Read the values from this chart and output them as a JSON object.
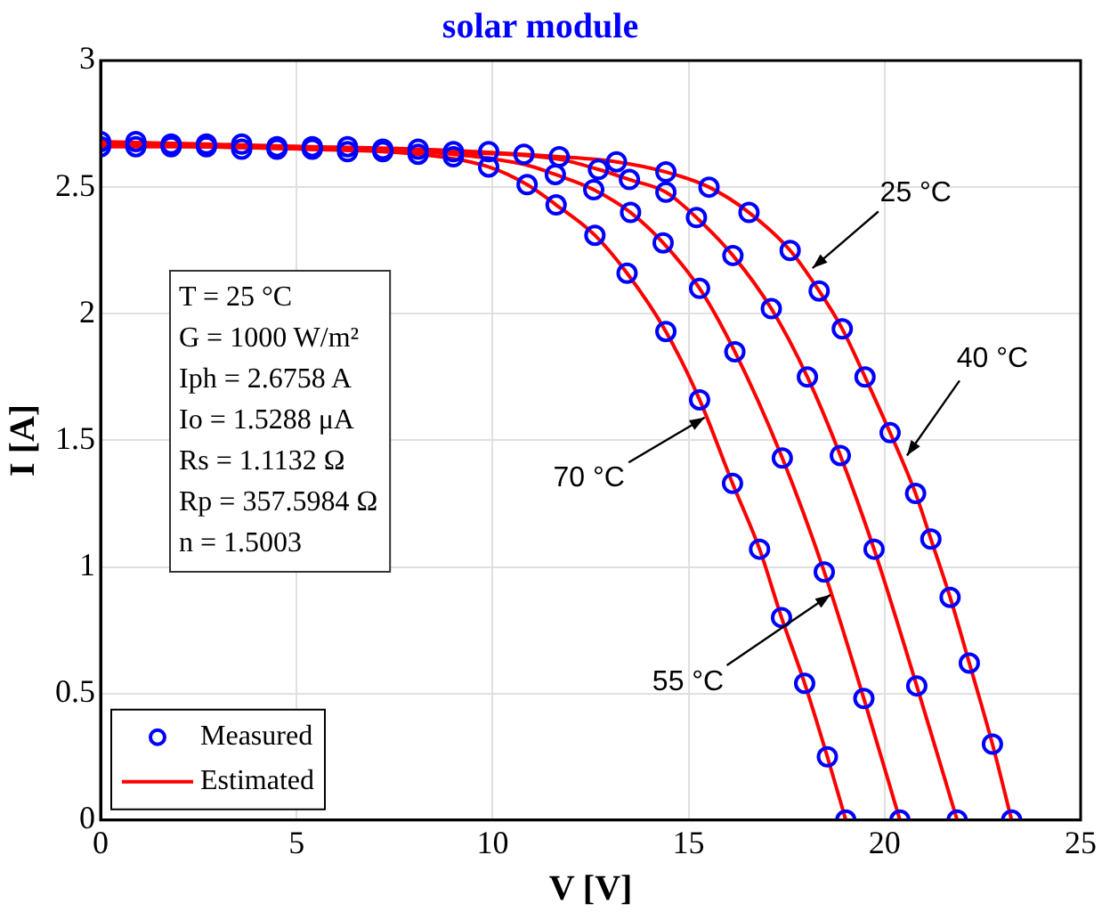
{
  "chart_data": {
    "type": "scatter",
    "title": "solar module",
    "xlabel": "V [V]",
    "ylabel": "I [A]",
    "xlim": [
      0,
      25
    ],
    "xticks": [
      0,
      5,
      10,
      15,
      20,
      25
    ],
    "ylim": [
      0,
      3
    ],
    "yticks": [
      0,
      0.5,
      1,
      1.5,
      2,
      2.5,
      3
    ],
    "grid": true,
    "legend": "bottom left",
    "marker": "circle",
    "annotations": [
      {
        "text": "25 °C",
        "x": 18.16,
        "y": 2.18
      },
      {
        "text": "40 °C",
        "x": 20.57,
        "y": 1.44
      },
      {
        "text": "70 °C",
        "x": 15.41,
        "y": 1.59
      },
      {
        "text": "55 °C",
        "x": 18.62,
        "y": 0.89
      },
      "T = 25 °C",
      "G = 1000 W/m²",
      "Iph = 2.6758 A",
      "Io = 1.5288 μA",
      "Rs = 1.1132 Ω",
      "Rp = 357.5984 Ω",
      "n = 1.5003"
    ],
    "series": [
      {
        "name": "Measured",
        "color": "#0000ff",
        "x": [
          0,
          0.9,
          1.8,
          2.7,
          3.6,
          4.5,
          5.4,
          6.3,
          7.2,
          8.1,
          9.0,
          9.9,
          10.8,
          11.7,
          13.16,
          14.42,
          15.52,
          16.54,
          17.59,
          18.33,
          18.92,
          19.5,
          20.14,
          20.79,
          21.18,
          21.67,
          22.16,
          22.75,
          23.24
        ],
        "values": [
          2.68,
          2.68,
          2.67,
          2.67,
          2.67,
          2.66,
          2.66,
          2.66,
          2.65,
          2.65,
          2.64,
          2.64,
          2.63,
          2.62,
          2.6,
          2.56,
          2.5,
          2.4,
          2.25,
          2.09,
          1.94,
          1.75,
          1.53,
          1.29,
          1.11,
          0.88,
          0.62,
          0.3,
          0
        ]
      },
      {
        "color": "#0000ff",
        "x": [
          12.7,
          13.49,
          14.42,
          15.2,
          16.13,
          17.11,
          18.03,
          18.87,
          19.73,
          20.82,
          21.85
        ],
        "values": [
          2.57,
          2.53,
          2.48,
          2.38,
          2.23,
          2.02,
          1.75,
          1.44,
          1.07,
          0.53,
          0
        ]
      },
      {
        "color": "#0000ff",
        "x": [
          11.6,
          12.58,
          13.52,
          14.35,
          15.28,
          16.18,
          17.39,
          18.46,
          19.47,
          20.39
        ],
        "values": [
          2.55,
          2.49,
          2.4,
          2.28,
          2.1,
          1.85,
          1.43,
          0.98,
          0.48,
          0
        ]
      },
      {
        "color": "#0000ff",
        "x": [
          0,
          0.9,
          1.8,
          2.7,
          3.6,
          4.5,
          5.4,
          6.3,
          7.2,
          8.1,
          9.0,
          9.9,
          10.88,
          11.62,
          12.61,
          13.43,
          14.42,
          15.28,
          16.12,
          16.81,
          17.37,
          17.96,
          18.54,
          19.01
        ],
        "values": [
          2.66,
          2.66,
          2.66,
          2.66,
          2.65,
          2.65,
          2.65,
          2.64,
          2.64,
          2.63,
          2.62,
          2.58,
          2.51,
          2.43,
          2.31,
          2.16,
          1.93,
          1.66,
          1.33,
          1.07,
          0.8,
          0.54,
          0.25,
          0
        ]
      },
      {
        "name": "Estimated",
        "type": "line",
        "color": "#ff0000",
        "marker": "none",
        "x": [
          0,
          2.7,
          5.4,
          8.1,
          11.7,
          13.16,
          14.42,
          15.52,
          16.54,
          17.59,
          18.33,
          18.92,
          19.5,
          20.14,
          20.79,
          21.18,
          21.67,
          22.16,
          22.75,
          23.24
        ],
        "values": [
          2.68,
          2.67,
          2.66,
          2.65,
          2.62,
          2.6,
          2.56,
          2.5,
          2.4,
          2.25,
          2.09,
          1.94,
          1.75,
          1.53,
          1.29,
          1.11,
          0.88,
          0.62,
          0.3,
          0
        ]
      },
      {
        "type": "line",
        "color": "#ff0000",
        "marker": "none",
        "x": [
          0,
          2.7,
          5.4,
          8.1,
          11.7,
          12.7,
          13.49,
          14.42,
          15.2,
          16.13,
          17.11,
          18.03,
          18.87,
          19.73,
          20.82,
          21.85
        ],
        "values": [
          2.67,
          2.66,
          2.65,
          2.64,
          2.61,
          2.57,
          2.53,
          2.48,
          2.38,
          2.23,
          2.02,
          1.75,
          1.44,
          1.07,
          0.53,
          0
        ]
      },
      {
        "type": "line",
        "color": "#ff0000",
        "marker": "none",
        "x": [
          0,
          2.7,
          5.4,
          8.1,
          10.8,
          11.6,
          12.58,
          13.52,
          14.35,
          15.28,
          16.18,
          17.39,
          18.46,
          19.47,
          20.39
        ],
        "values": [
          2.67,
          2.66,
          2.65,
          2.64,
          2.59,
          2.55,
          2.49,
          2.4,
          2.28,
          2.1,
          1.85,
          1.43,
          0.98,
          0.48,
          0
        ]
      },
      {
        "type": "line",
        "color": "#ff0000",
        "marker": "none",
        "x": [
          0,
          2.7,
          5.4,
          8.1,
          9.9,
          10.88,
          11.62,
          12.61,
          13.43,
          14.42,
          15.28,
          16.12,
          16.81,
          17.37,
          17.96,
          18.54,
          19.01
        ],
        "values": [
          2.66,
          2.66,
          2.65,
          2.63,
          2.58,
          2.51,
          2.43,
          2.31,
          2.16,
          1.93,
          1.66,
          1.33,
          1.07,
          0.8,
          0.54,
          0.25,
          0
        ]
      }
    ]
  }
}
